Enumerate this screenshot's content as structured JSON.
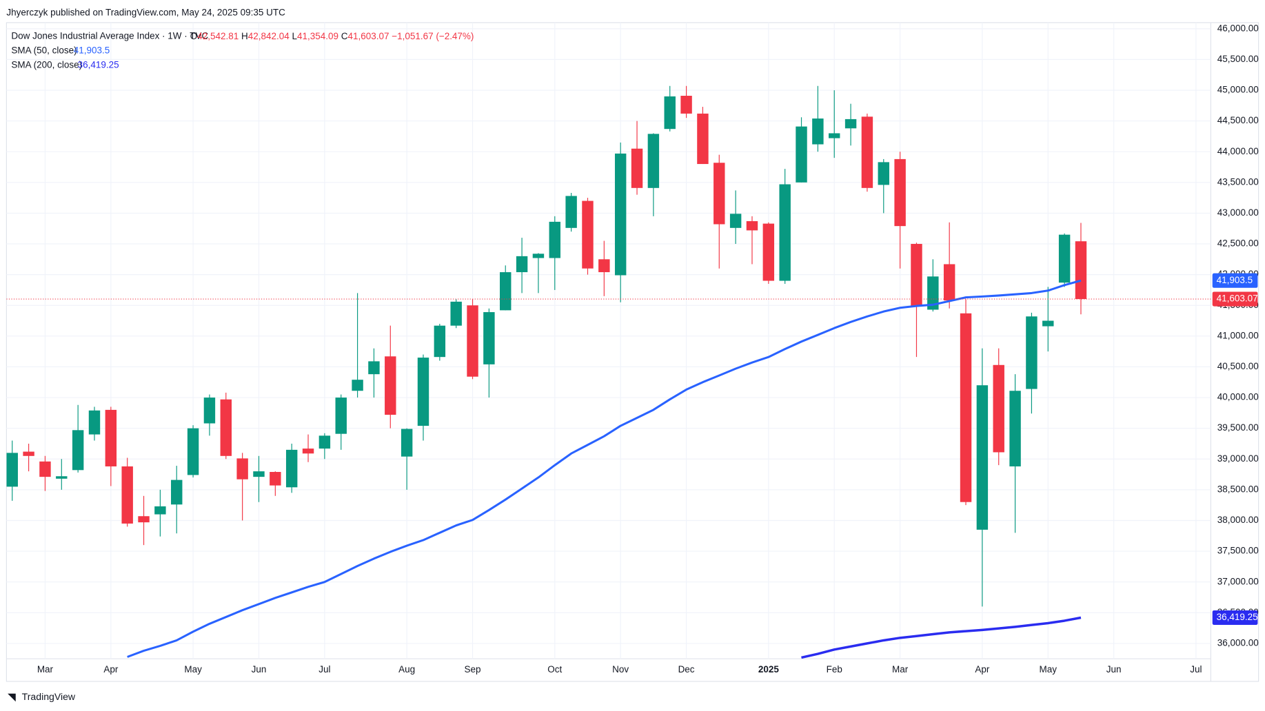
{
  "header": {
    "published": "Jhyerczyk published on TradingView.com, May 24, 2025 09:35 UTC"
  },
  "legend": {
    "title": "Dow Jones Industrial Average Index · 1W · TVC",
    "items": [
      {
        "key": "O",
        "value": "42,542.81"
      },
      {
        "key": "H",
        "value": "42,842.04"
      },
      {
        "key": "L",
        "value": "41,354.09"
      },
      {
        "key": "C",
        "value": "41,603.07"
      }
    ],
    "change": "−1,051.67 (−2.47%)"
  },
  "footer": {
    "brand": "TradingView"
  },
  "chart_data": {
    "type": "candlestick",
    "up_color": "#089981",
    "down_color": "#f23645",
    "grid": true,
    "candles": {
      "open": [
        38550,
        39120,
        38960,
        38680,
        38820,
        39400,
        39800,
        38880,
        38070,
        38100,
        38260,
        38740,
        39580,
        39970,
        39010,
        38710,
        38790,
        38540,
        39170,
        39170,
        39410,
        40110,
        40380,
        40670,
        39040,
        39540,
        40660,
        41170,
        41500,
        40540,
        41420,
        42040,
        42270,
        42270,
        42760,
        43200,
        42250,
        41990,
        44050,
        43410,
        44370,
        44910,
        44620,
        43820,
        42760,
        42870,
        42830,
        41900,
        43500,
        44120,
        44220,
        44380,
        44570,
        43460,
        43880,
        42500,
        41430,
        42170,
        41370,
        37850,
        40530,
        38880,
        40140,
        41160,
        41870,
        42542.81
      ],
      "high": [
        39300,
        39250,
        39050,
        39000,
        39880,
        39850,
        39850,
        39020,
        38400,
        38500,
        38890,
        39550,
        40050,
        40080,
        39100,
        39050,
        38800,
        39250,
        39400,
        39420,
        40050,
        41700,
        40800,
        41170,
        39500,
        40700,
        41200,
        41600,
        41600,
        41450,
        42150,
        42600,
        42350,
        42950,
        43330,
        43250,
        42550,
        44150,
        44500,
        44300,
        45070,
        45070,
        44730,
        43950,
        43370,
        42950,
        42850,
        43720,
        44560,
        45070,
        45000,
        44780,
        44620,
        43880,
        44000,
        42520,
        42250,
        42850,
        41600,
        40800,
        40800,
        40380,
        41380,
        41800,
        42670,
        42842.04
      ],
      "low": [
        38320,
        38800,
        38480,
        38500,
        38780,
        39300,
        38560,
        37900,
        37600,
        37740,
        37790,
        38700,
        39380,
        39000,
        38000,
        38300,
        38400,
        38450,
        38950,
        39000,
        39150,
        40000,
        40000,
        39500,
        38500,
        39300,
        40600,
        41130,
        40300,
        40000,
        41420,
        41700,
        41700,
        41750,
        42700,
        42000,
        41650,
        41550,
        43300,
        42950,
        44330,
        44550,
        43800,
        42100,
        42500,
        42170,
        41850,
        41850,
        43500,
        44000,
        43900,
        44100,
        43350,
        43000,
        42100,
        40660,
        41400,
        41450,
        38250,
        36600,
        38900,
        37800,
        39740,
        40750,
        41800,
        41354.09
      ],
      "close": [
        39100,
        39050,
        38710,
        38720,
        39470,
        39790,
        38880,
        37950,
        37970,
        38230,
        38660,
        39500,
        40000,
        39050,
        38670,
        38800,
        38570,
        39150,
        39090,
        39380,
        40000,
        40290,
        40590,
        39720,
        39490,
        40650,
        41170,
        41560,
        40340,
        41390,
        42040,
        42300,
        42340,
        42860,
        43280,
        42100,
        42040,
        43970,
        43410,
        44290,
        44900,
        44620,
        43800,
        42820,
        42990,
        42720,
        41900,
        43470,
        44410,
        44540,
        44300,
        44530,
        43410,
        43830,
        42790,
        41480,
        41970,
        41580,
        38300,
        40200,
        39110,
        40110,
        41320,
        41250,
        42650,
        41603.07
      ],
      "price_label": "41,603.07"
    },
    "series": [
      {
        "name": "SMA (50, close)",
        "color": "#2962ff",
        "last_label": "41,903.5",
        "values": [
          null,
          null,
          null,
          null,
          null,
          null,
          null,
          35780,
          35880,
          35960,
          36050,
          36190,
          36320,
          36430,
          36540,
          36640,
          36740,
          36830,
          36920,
          37000,
          37130,
          37260,
          37380,
          37490,
          37590,
          37680,
          37800,
          37920,
          38010,
          38170,
          38340,
          38520,
          38700,
          38900,
          39090,
          39230,
          39370,
          39540,
          39670,
          39800,
          39970,
          40130,
          40250,
          40360,
          40470,
          40570,
          40660,
          40790,
          40910,
          41020,
          41130,
          41230,
          41320,
          41400,
          41460,
          41490,
          41510,
          41570,
          41630,
          41645,
          41660,
          41680,
          41700,
          41740,
          41830,
          41903.5
        ]
      },
      {
        "name": "SMA (200, close)",
        "color": "#2a2cf0",
        "last_label": "36,419.25",
        "values": [
          null,
          null,
          null,
          null,
          null,
          null,
          null,
          null,
          null,
          null,
          null,
          null,
          null,
          null,
          null,
          null,
          null,
          null,
          null,
          null,
          null,
          null,
          null,
          null,
          null,
          null,
          null,
          null,
          null,
          null,
          null,
          null,
          null,
          null,
          null,
          null,
          null,
          null,
          null,
          null,
          null,
          null,
          null,
          null,
          null,
          null,
          null,
          null,
          35770,
          35830,
          35900,
          35950,
          36000,
          36050,
          36090,
          36120,
          36150,
          36180,
          36200,
          36220,
          36245,
          36270,
          36300,
          36330,
          36370,
          36419.25
        ]
      }
    ],
    "xlim": [
      -0.35,
      72.9
    ],
    "xticks": [
      {
        "value": 2,
        "label": "Mar"
      },
      {
        "value": 6,
        "label": "Apr"
      },
      {
        "value": 11,
        "label": "May"
      },
      {
        "value": 15,
        "label": "Jun"
      },
      {
        "value": 19,
        "label": "Jul"
      },
      {
        "value": 24,
        "label": "Aug"
      },
      {
        "value": 28,
        "label": "Sep"
      },
      {
        "value": 33,
        "label": "Oct"
      },
      {
        "value": 37,
        "label": "Nov"
      },
      {
        "value": 41,
        "label": "Dec"
      },
      {
        "value": 46,
        "label": "2025"
      },
      {
        "value": 50,
        "label": "Feb"
      },
      {
        "value": 54,
        "label": "Mar"
      },
      {
        "value": 59,
        "label": "Apr"
      },
      {
        "value": 63,
        "label": "May"
      },
      {
        "value": 67,
        "label": "Jun"
      },
      {
        "value": 72,
        "label": "Jul"
      }
    ],
    "ylim": [
      35750,
      46100
    ],
    "yticks": [
      {
        "value": 36000,
        "label": "36,000.00"
      },
      {
        "value": 36500,
        "label": "36,500.00"
      },
      {
        "value": 37000,
        "label": "37,000.00"
      },
      {
        "value": 37500,
        "label": "37,500.00"
      },
      {
        "value": 38000,
        "label": "38,000.00"
      },
      {
        "value": 38500,
        "label": "38,500.00"
      },
      {
        "value": 39000,
        "label": "39,000.00"
      },
      {
        "value": 39500,
        "label": "39,500.00"
      },
      {
        "value": 40000,
        "label": "40,000.00"
      },
      {
        "value": 40500,
        "label": "40,500.00"
      },
      {
        "value": 41000,
        "label": "41,000.00"
      },
      {
        "value": 41500,
        "label": "41,500.00"
      },
      {
        "value": 42000,
        "label": "42,000.00"
      },
      {
        "value": 42500,
        "label": "42,500.00"
      },
      {
        "value": 43000,
        "label": "43,000.00"
      },
      {
        "value": 43500,
        "label": "43,500.00"
      },
      {
        "value": 44000,
        "label": "44,000.00"
      },
      {
        "value": 44500,
        "label": "44,500.00"
      },
      {
        "value": 45000,
        "label": "45,000.00"
      },
      {
        "value": 45500,
        "label": "45,500.00"
      },
      {
        "value": 46000,
        "label": "46,000.00"
      }
    ]
  }
}
